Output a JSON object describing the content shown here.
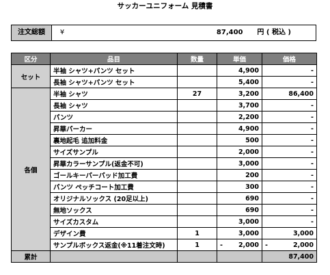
{
  "title": "サッカーユニフォーム 見積書",
  "total_box": {
    "label": "注文総額",
    "currency": "¥",
    "amount": "87,400",
    "suffix": "円 ( 税込 )"
  },
  "table": {
    "headers": [
      "区分",
      "品目",
      "数量",
      "単価",
      "価格"
    ],
    "groups": [
      {
        "category": "セット",
        "rows": [
          {
            "item": "半袖 シャツ+パンツ セット",
            "qty": "",
            "price": "4,900",
            "total": "-"
          },
          {
            "item": "長袖 シャツ+パンツ セット",
            "qty": "",
            "price": "5,400",
            "total": "-"
          }
        ]
      },
      {
        "category": "各個",
        "rows": [
          {
            "item": "半袖 シャツ",
            "qty": "27",
            "price": "3,200",
            "total": "86,400"
          },
          {
            "item": "長袖 シャツ",
            "qty": "",
            "price": "3,700",
            "total": "-"
          },
          {
            "item": "パンツ",
            "qty": "",
            "price": "2,200",
            "total": "-"
          },
          {
            "item": "昇華パーカー",
            "qty": "",
            "price": "4,900",
            "total": "-"
          },
          {
            "item": "裏地起毛 追加料金",
            "qty": "",
            "price": "500",
            "total": "-"
          },
          {
            "item": "サイズサンプル",
            "qty": "",
            "price": "2,000",
            "total": "-"
          },
          {
            "item": "昇華カラーサンプル(返金不可)",
            "qty": "",
            "price": "3,000",
            "total": "-"
          },
          {
            "item": "ゴールキーパーパッド加工費",
            "qty": "",
            "price": "200",
            "total": "-"
          },
          {
            "item": "パンツ ペッチコート加工費",
            "qty": "",
            "price": "300",
            "total": "-"
          },
          {
            "item": "オリジナルソックス (20足以上)",
            "qty": "",
            "price": "690",
            "total": "-"
          },
          {
            "item": "無地ソックス",
            "qty": "",
            "price": "690",
            "total": "-"
          },
          {
            "item": "サイズカスタム",
            "qty": "",
            "price": "3,000",
            "total": "-"
          },
          {
            "item": "デザイン費",
            "qty": "1",
            "price": "3,000",
            "total": "3,000"
          },
          {
            "item": "サンプルボックス返金(※11着注文時)",
            "qty": "1",
            "price": "2,000",
            "total": "2,000",
            "negative": true
          }
        ]
      }
    ],
    "footer": {
      "label": "累計",
      "total": "87,400"
    }
  }
}
